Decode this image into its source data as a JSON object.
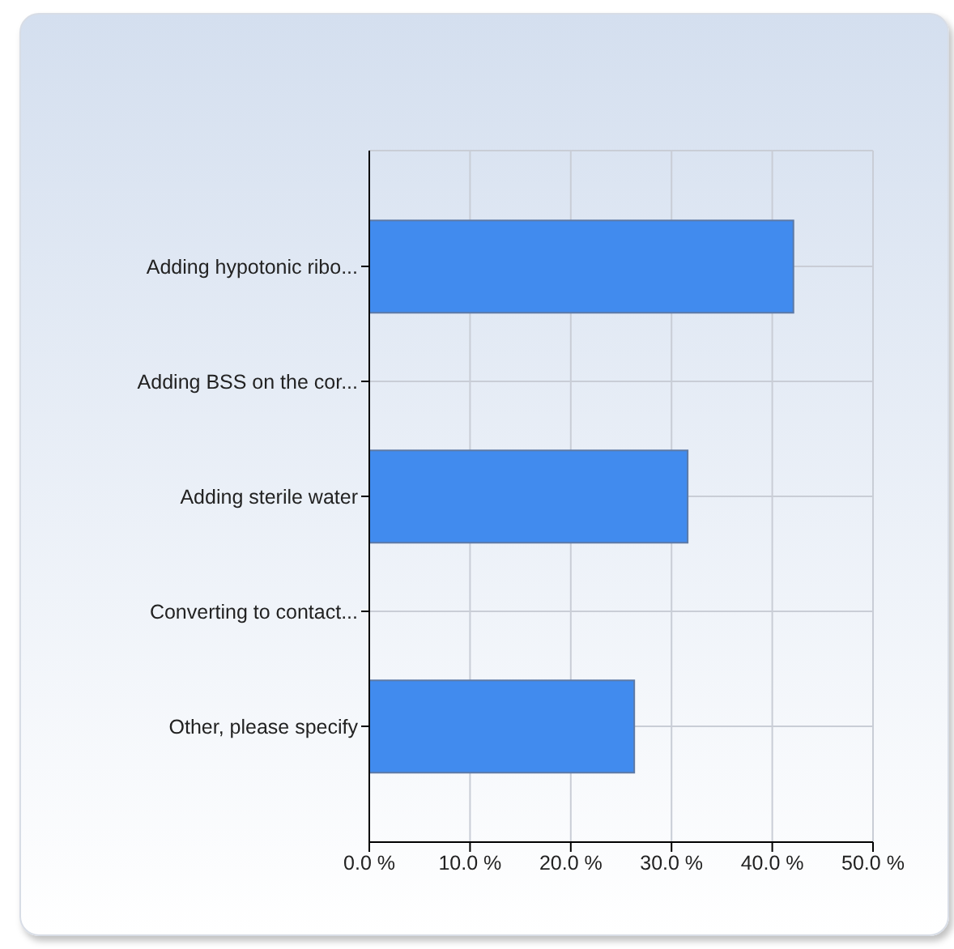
{
  "chart_data": {
    "type": "bar",
    "orientation": "horizontal",
    "categories": [
      "Adding hypotonic ribo...",
      "Adding BSS on the cor...",
      "Adding sterile water",
      "Converting to contact...",
      "Other, please specify"
    ],
    "values": [
      42.1,
      0,
      31.6,
      0,
      26.3
    ],
    "color": "#418bee",
    "xlim": [
      0,
      50
    ],
    "xticks": [
      {
        "value": 0,
        "label": "0.0 %"
      },
      {
        "value": 10,
        "label": "10.0 %"
      },
      {
        "value": 20,
        "label": "20.0 %"
      },
      {
        "value": 30,
        "label": "30.0 %"
      },
      {
        "value": 40,
        "label": "40.0 %"
      },
      {
        "value": 50,
        "label": "50.0 %"
      }
    ],
    "grid": true
  }
}
